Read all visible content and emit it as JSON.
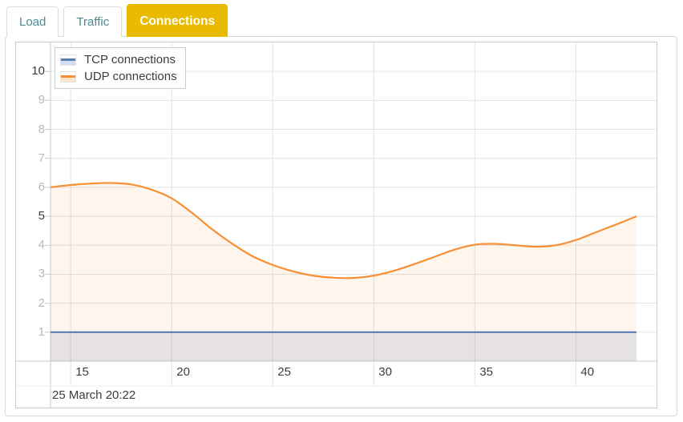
{
  "tabs": {
    "active_bg": "#e9ba00",
    "items": [
      {
        "label": "Load",
        "active": false
      },
      {
        "label": "Traffic",
        "active": false
      },
      {
        "label": "Connections",
        "active": true
      }
    ]
  },
  "chart_data": {
    "type": "area",
    "title": "",
    "xlabel": "",
    "ylabel": "",
    "x_range": [
      14,
      43
    ],
    "y_range": [
      0,
      11
    ],
    "x_ticks": [
      15,
      20,
      25,
      30,
      35,
      40
    ],
    "y_ticks": [
      1,
      2,
      3,
      4,
      5,
      6,
      7,
      8,
      9,
      10
    ],
    "emphasized_y_ticks": [
      5,
      10
    ],
    "grid": true,
    "legend_position": "top-left",
    "footer_timestamp": "25 March 20:22",
    "series": [
      {
        "name": "TCP connections",
        "color": "#5b7cb0",
        "fill": "rgba(100,135,185,0.17)",
        "legend_fill": "#d3deee",
        "x": [
          14,
          43
        ],
        "values": [
          1,
          1
        ]
      },
      {
        "name": "UDP connections",
        "color": "#f78f35",
        "fill": "rgba(247,145,58,0.09)",
        "legend_fill": "#fce5cd",
        "x": [
          14,
          15,
          16,
          17,
          18,
          19,
          20,
          21,
          22,
          23,
          24,
          25,
          26,
          27,
          28,
          29,
          30,
          31,
          32,
          33,
          34,
          35,
          36,
          37,
          38,
          39,
          40,
          41,
          42,
          43
        ],
        "values": [
          6.0,
          6.08,
          6.13,
          6.15,
          6.1,
          5.92,
          5.62,
          5.12,
          4.55,
          4.05,
          3.62,
          3.32,
          3.1,
          2.95,
          2.88,
          2.87,
          2.95,
          3.12,
          3.35,
          3.6,
          3.85,
          4.02,
          4.05,
          4.0,
          3.95,
          4.0,
          4.18,
          4.45,
          4.72,
          5.0
        ]
      }
    ]
  }
}
